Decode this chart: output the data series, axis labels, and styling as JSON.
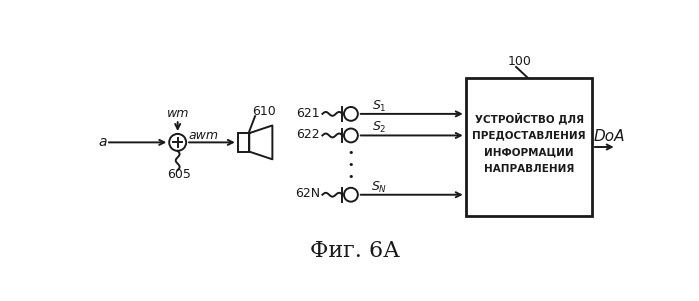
{
  "bg_color": "#ffffff",
  "line_color": "#1a1a1a",
  "fig_caption": "Фиг. 6А",
  "label_100": "100",
  "label_610": "610",
  "label_605": "605",
  "label_wm": "wm",
  "label_a": "a",
  "label_awm": "awm",
  "label_621": "621",
  "label_622": "622",
  "label_62N": "62N",
  "label_s1": "$S_1$",
  "label_s2": "$S_2$",
  "label_sN": "$S_N$",
  "label_DoA": "DoA",
  "box_text": "УСТРОЙСТВО ДЛЯ\nПРЕДОСТАВЛЕНИЯ\nИНФОРМАЦИИ\nНАПРАВЛЕНИЯ"
}
